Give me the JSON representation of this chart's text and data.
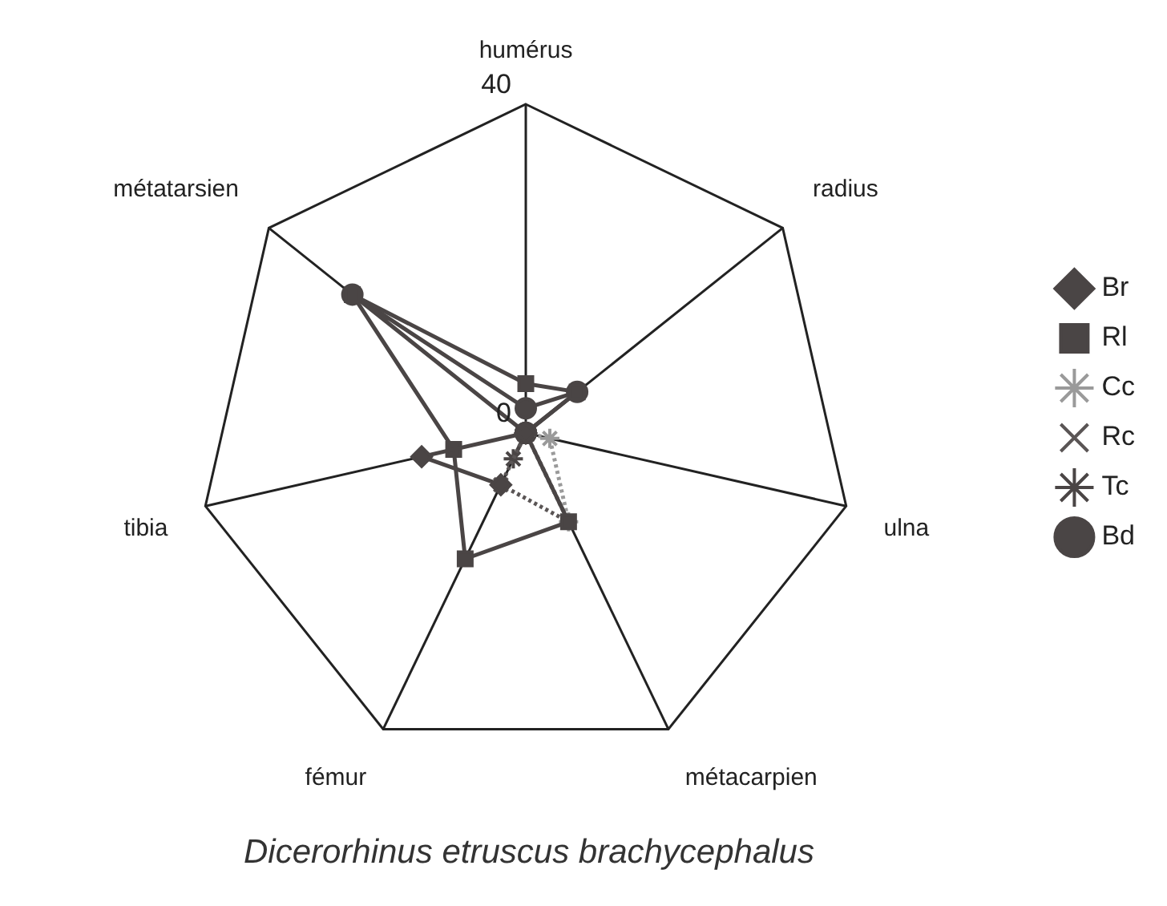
{
  "chart_data": {
    "type": "radar",
    "title": "Dicerorhinus etruscus brachycephalus",
    "categories": [
      "humérus",
      "radius",
      "ulna",
      "métacarpien",
      "fémur",
      "tibia",
      "métatarsien"
    ],
    "ylim": [
      0,
      40
    ],
    "yticks": [
      0,
      40
    ],
    "grid": true,
    "legend": "right",
    "series": [
      {
        "name": "Br",
        "color": "#4a4545",
        "marker": "diamond",
        "line_style": "solid",
        "values": [
          0,
          0,
          0,
          null,
          7,
          13,
          0
        ]
      },
      {
        "name": "Rl",
        "color": "#4a4545",
        "marker": "square",
        "line_style": "solid",
        "values": [
          6,
          8,
          0,
          12,
          17,
          9,
          27
        ]
      },
      {
        "name": "Cc",
        "color": "#9a9a9a",
        "marker": "star",
        "line_style": "dotted",
        "values": [
          0,
          0,
          3,
          12,
          0,
          0,
          0
        ]
      },
      {
        "name": "Rc",
        "color": "#5a5555",
        "marker": "cross",
        "line_style": "dotted",
        "values": [
          0,
          0,
          0,
          12,
          7,
          0,
          0
        ]
      },
      {
        "name": "Tc",
        "color": "#4a4545",
        "marker": "star",
        "line_style": "solid",
        "values": [
          0,
          0,
          0,
          0,
          3.5,
          0,
          0
        ]
      },
      {
        "name": "Bd",
        "color": "#4a4545",
        "marker": "circle",
        "line_style": "solid",
        "values": [
          3,
          8,
          0,
          0,
          0,
          0,
          27
        ]
      }
    ]
  }
}
